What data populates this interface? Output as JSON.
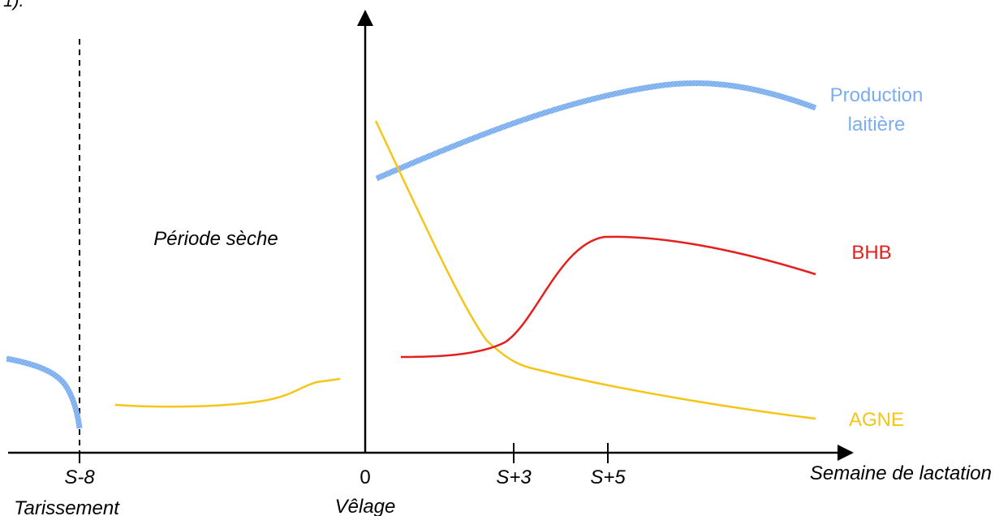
{
  "header_fragment": "1).",
  "period_label": "Période sèche",
  "axis": {
    "x_title": "Semaine de lactation",
    "ticks": [
      {
        "label": "S-8",
        "sub": "Tarissement"
      },
      {
        "label": "0",
        "sub": "Vêlage"
      },
      {
        "label": "S+3",
        "sub": ""
      },
      {
        "label": "S+5",
        "sub": ""
      }
    ]
  },
  "series": {
    "milk": {
      "name_line1": "Production",
      "name_line2": "laitière",
      "color": "#7aaef0"
    },
    "bhb": {
      "name": "BHB",
      "color": "#e61e1e"
    },
    "agne": {
      "name": "AGNE",
      "color": "#f5c518"
    }
  }
}
